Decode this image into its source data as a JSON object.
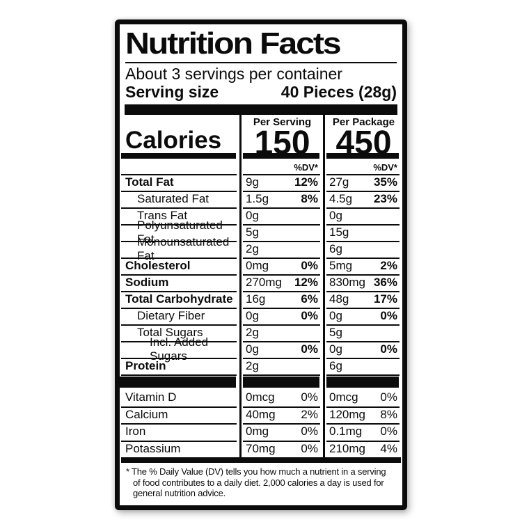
{
  "colors": {
    "ink": "#0b0b0b",
    "paper": "#ffffff",
    "page_bg": "#ffffff"
  },
  "label": {
    "title": "Nutrition Facts",
    "servings_per_container": "About 3 servings per container",
    "serving_size_label": "Serving size",
    "serving_size_value": "40 Pieces (28g)",
    "calories_word": "Calories",
    "per_serving_header": "Per Serving",
    "per_package_header": "Per Package",
    "calories_per_serving": "150",
    "calories_per_package": "450",
    "dv_header_serving": "%DV*",
    "dv_header_package": "%DV*",
    "rows": [
      {
        "name": "Total Fat",
        "serv_amt": "9g",
        "serv_dv": "12%",
        "pkg_amt": "27g",
        "pkg_dv": "35%"
      },
      {
        "name": "Saturated Fat",
        "serv_amt": "1.5g",
        "serv_dv": "8%",
        "pkg_amt": "4.5g",
        "pkg_dv": "23%"
      },
      {
        "name": "Trans Fat",
        "serv_amt": "0g",
        "serv_dv": "",
        "pkg_amt": "0g",
        "pkg_dv": ""
      },
      {
        "name": "Polyunsaturated Fat",
        "serv_amt": "5g",
        "serv_dv": "",
        "pkg_amt": "15g",
        "pkg_dv": ""
      },
      {
        "name": "Monounsaturated Fat",
        "serv_amt": "2g",
        "serv_dv": "",
        "pkg_amt": "6g",
        "pkg_dv": ""
      },
      {
        "name": "Cholesterol",
        "serv_amt": "0mg",
        "serv_dv": "0%",
        "pkg_amt": "5mg",
        "pkg_dv": "2%"
      },
      {
        "name": "Sodium",
        "serv_amt": "270mg",
        "serv_dv": "12%",
        "pkg_amt": "830mg",
        "pkg_dv": "36%"
      },
      {
        "name": "Total Carbohydrate",
        "serv_amt": "16g",
        "serv_dv": "6%",
        "pkg_amt": "48g",
        "pkg_dv": "17%"
      },
      {
        "name": "Dietary Fiber",
        "serv_amt": "0g",
        "serv_dv": "0%",
        "pkg_amt": "0g",
        "pkg_dv": "0%"
      },
      {
        "name": "Total Sugars",
        "serv_amt": "2g",
        "serv_dv": "",
        "pkg_amt": "5g",
        "pkg_dv": ""
      },
      {
        "name": "Incl. Added Sugars",
        "serv_amt": "0g",
        "serv_dv": "0%",
        "pkg_amt": "0g",
        "pkg_dv": "0%"
      },
      {
        "name": "Protein",
        "serv_amt": "2g",
        "serv_dv": "",
        "pkg_amt": "6g",
        "pkg_dv": ""
      }
    ],
    "vitamins": [
      {
        "name": "Vitamin D",
        "serv_amt": "0mcg",
        "serv_dv": "0%",
        "pkg_amt": "0mcg",
        "pkg_dv": "0%"
      },
      {
        "name": "Calcium",
        "serv_amt": "40mg",
        "serv_dv": "2%",
        "pkg_amt": "120mg",
        "pkg_dv": "8%"
      },
      {
        "name": "Iron",
        "serv_amt": "0mg",
        "serv_dv": "0%",
        "pkg_amt": "0.1mg",
        "pkg_dv": "0%"
      },
      {
        "name": "Potassium",
        "serv_amt": "70mg",
        "serv_dv": "0%",
        "pkg_amt": "210mg",
        "pkg_dv": "4%"
      }
    ],
    "footnote": "* The % Daily Value (DV) tells you how much a nutrient in a serving of food contributes to a daily diet. 2,000 calories a day is used for general nutrition advice."
  }
}
